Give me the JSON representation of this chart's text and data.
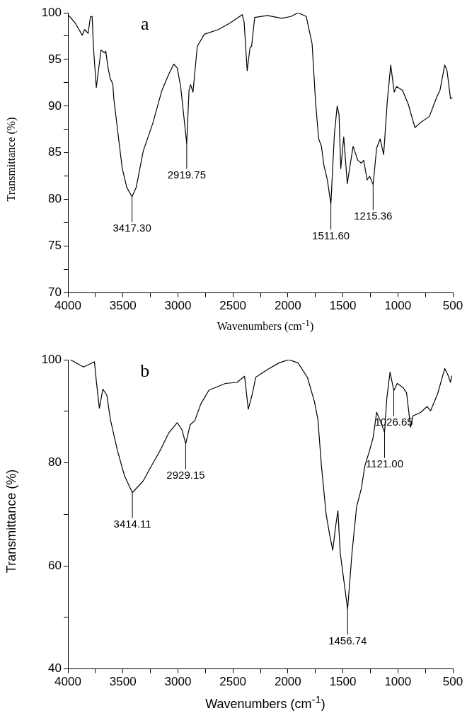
{
  "chart_data": [
    {
      "type": "line",
      "xlabel": "Wavenumbers (cm$^{-1}$)",
      "ylabel": "Transmittance (%)",
      "color": "#000000",
      "marker": "none",
      "x": [
        4000,
        3934,
        3870,
        3848,
        3816,
        3795,
        3780,
        3768,
        3742,
        3699,
        3667,
        3656,
        3635,
        3614,
        3592,
        3582,
        3550,
        3507,
        3465,
        3417,
        3379,
        3315,
        3230,
        3145,
        3080,
        3038,
        3006,
        2974,
        2920,
        2899,
        2885,
        2863,
        2824,
        2760,
        2632,
        2526,
        2415,
        2398,
        2370,
        2344,
        2330,
        2302,
        2185,
        2057,
        1972,
        1908,
        1833,
        1780,
        1748,
        1720,
        1695,
        1673,
        1641,
        1609,
        1599,
        1577,
        1552,
        1535,
        1519,
        1492,
        1460,
        1439,
        1407,
        1364,
        1332,
        1311,
        1279,
        1257,
        1225,
        1193,
        1161,
        1129,
        1097,
        1065,
        1033,
        1012,
        958,
        905,
        845,
        798,
        713,
        649,
        617,
        574,
        553,
        521,
        504
      ],
      "values": [
        99.8,
        98.9,
        97.6,
        98.2,
        97.8,
        99.6,
        99.6,
        96.3,
        92.0,
        96.0,
        95.7,
        95.9,
        94.1,
        92.9,
        92.4,
        90.7,
        87.6,
        83.4,
        81.3,
        80.3,
        81.3,
        85.2,
        88.1,
        91.7,
        93.5,
        94.5,
        94.1,
        92.0,
        86.0,
        91.7,
        92.3,
        91.5,
        96.4,
        97.7,
        98.2,
        98.9,
        99.8,
        99.0,
        93.8,
        96.3,
        96.4,
        99.5,
        99.7,
        99.4,
        99.6,
        100.0,
        99.6,
        96.7,
        90.4,
        86.5,
        85.7,
        83.7,
        82.1,
        79.5,
        81.9,
        87.0,
        90.0,
        89.1,
        83.3,
        86.7,
        81.7,
        83.3,
        85.7,
        84.2,
        83.9,
        84.2,
        82.1,
        82.5,
        81.6,
        85.5,
        86.5,
        84.8,
        90.4,
        94.4,
        91.5,
        92.1,
        91.7,
        90.2,
        87.7,
        88.2,
        88.9,
        90.9,
        91.7,
        94.4,
        93.8,
        90.8,
        90.9
      ],
      "xlim": [
        4000,
        500
      ],
      "xticks": [
        4000,
        {
          "value": 3750,
          "label": null
        },
        3500,
        {
          "value": 3250,
          "label": null
        },
        3000,
        {
          "value": 2750,
          "label": null
        },
        2500,
        {
          "value": 2250,
          "label": null
        },
        2000,
        {
          "value": 1750,
          "label": null
        },
        1500,
        {
          "value": 1250,
          "label": null
        },
        1000,
        {
          "value": 750,
          "label": null
        },
        500
      ],
      "ylim": [
        70,
        100
      ],
      "yticks": [
        70,
        {
          "value": 72.5,
          "label": null
        },
        75,
        {
          "value": 77.5,
          "label": null
        },
        80,
        {
          "value": 82.5,
          "label": null
        },
        85,
        {
          "value": 87.5,
          "label": null
        },
        90,
        {
          "value": 92.5,
          "label": null
        },
        95,
        {
          "value": 97.5,
          "label": null
        },
        100
      ],
      "annotations": [
        "a",
        {
          "text": "3417.30",
          "x": 3417,
          "y": 80.3
        },
        {
          "text": "2919.75",
          "x": 2920,
          "y": 86.0
        },
        {
          "text": "1511.60",
          "x": 1609,
          "y": 79.5
        },
        {
          "text": "1215.36",
          "x": 1225,
          "y": 81.6
        }
      ]
    },
    {
      "type": "line",
      "xlabel": "Wavenumbers (cm$^{-1}$)",
      "ylabel": "Transmittance (%)",
      "color": "#000000",
      "marker": "none",
      "x": [
        3977,
        3859,
        3806,
        3759,
        3742,
        3714,
        3682,
        3646,
        3614,
        3550,
        3486,
        3414,
        3315,
        3251,
        3166,
        3080,
        3006,
        2963,
        2929,
        2888,
        2846,
        2792,
        2718,
        2568,
        2462,
        2394,
        2360,
        2323,
        2292,
        2185,
        2079,
        1993,
        1908,
        1823,
        1759,
        1727,
        1695,
        1652,
        1620,
        1592,
        1567,
        1545,
        1524,
        1457,
        1417,
        1375,
        1332,
        1300,
        1257,
        1225,
        1193,
        1161,
        1121,
        1101,
        1071,
        1037,
        1006,
        953,
        921,
        884,
        863,
        798,
        734,
        702,
        638,
        574,
        542,
        521,
        510
      ],
      "values": [
        100.0,
        98.6,
        99.1,
        99.6,
        95.9,
        90.6,
        94.3,
        93.1,
        88.4,
        82.4,
        77.5,
        74.2,
        76.5,
        79.0,
        82.2,
        85.9,
        87.8,
        86.4,
        83.7,
        87.4,
        88.2,
        91.4,
        94.1,
        95.4,
        95.6,
        96.8,
        90.4,
        93.4,
        96.6,
        98.1,
        99.4,
        100.0,
        99.4,
        96.6,
        91.9,
        88.4,
        79.4,
        70.0,
        66.0,
        63.0,
        67.5,
        70.7,
        62.5,
        51.6,
        62.5,
        71.5,
        75.0,
        79.4,
        82.4,
        84.9,
        89.8,
        88.2,
        85.9,
        92.4,
        97.6,
        94.0,
        95.4,
        94.6,
        93.6,
        86.9,
        89.1,
        89.7,
        90.9,
        90.1,
        93.4,
        98.3,
        96.9,
        95.6,
        96.9
      ],
      "xlim": [
        4000,
        500
      ],
      "xticks": [
        4000,
        {
          "value": 3750,
          "label": null
        },
        3500,
        {
          "value": 3250,
          "label": null
        },
        3000,
        {
          "value": 2750,
          "label": null
        },
        2500,
        {
          "value": 2250,
          "label": null
        },
        2000,
        {
          "value": 1750,
          "label": null
        },
        1500,
        {
          "value": 1250,
          "label": null
        },
        1000,
        {
          "value": 750,
          "label": null
        },
        500
      ],
      "ylim": [
        40,
        100
      ],
      "yticks": [
        40,
        {
          "value": 50,
          "label": null
        },
        60,
        {
          "value": 70,
          "label": null
        },
        80,
        {
          "value": 90,
          "label": null
        },
        100
      ],
      "annotations": [
        "b",
        {
          "text": "3414.11",
          "x": 3414,
          "y": 74.2
        },
        {
          "text": "2929.15",
          "x": 2929,
          "y": 83.7
        },
        {
          "text": "1456.74",
          "x": 1457,
          "y": 51.6
        },
        {
          "text": "1121.00",
          "x": 1121,
          "y": 85.9
        },
        {
          "text": "1026.65",
          "x": 1037,
          "y": 94.0
        }
      ]
    }
  ]
}
